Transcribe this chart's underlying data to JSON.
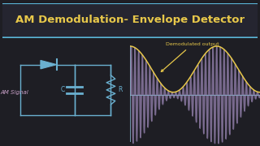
{
  "title": "AM Demodulation- Envelope Detector",
  "title_color": "#E8C84A",
  "bg_color": "#1e1e24",
  "title_bg": "#252530",
  "border_color": "#5ab4d6",
  "circuit_label": "AM Signal",
  "circuit_label_color": "#c8a0c8",
  "annotation": "Demodulated output",
  "annotation_color": "#E8C84A",
  "component_C": "C",
  "component_R": "R",
  "component_color": "#6ab0d0",
  "diode_color": "#6ab0d0",
  "signal_color_fill": "#7a6a90",
  "signal_color_line": "#9a8ab0",
  "envelope_color": "#E8C84A",
  "axis_color": "#8ab8d0",
  "f_carrier": 35,
  "f_mod": 1.5,
  "modulation": 0.9
}
